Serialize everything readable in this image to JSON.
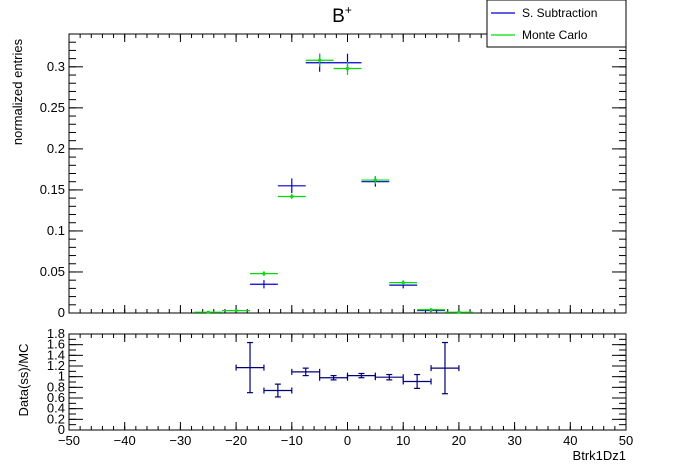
{
  "chart_data": [
    {
      "type": "scatter",
      "title": "B",
      "title_superscript": "+",
      "xlabel": "",
      "ylabel": "normalized entries",
      "xlim": [
        -50,
        50
      ],
      "ylim": [
        0,
        0.34
      ],
      "x_ticks": [
        -50,
        -40,
        -30,
        -20,
        -10,
        0,
        10,
        20,
        30,
        40,
        50
      ],
      "y_ticks": [
        0,
        0.05,
        0.1,
        0.15,
        0.2,
        0.25,
        0.3
      ],
      "y_tick_labels": [
        "0",
        "0.05",
        "0.1",
        "0.15",
        "0.2",
        "0.25",
        "0.3"
      ],
      "legend": {
        "placement": "top-right"
      },
      "series": [
        {
          "name": "S. Subtraction",
          "color": "#0000cc",
          "points": [
            {
              "x": -20,
              "xerr": 2.5,
              "y": 0.003,
              "yerr": 0.002
            },
            {
              "x": -15,
              "xerr": 2.5,
              "y": 0.035,
              "yerr": 0.005
            },
            {
              "x": -10,
              "xerr": 2.5,
              "y": 0.155,
              "yerr": 0.009
            },
            {
              "x": -5,
              "xerr": 2.5,
              "y": 0.305,
              "yerr": 0.011
            },
            {
              "x": 0,
              "xerr": 2.5,
              "y": 0.305,
              "yerr": 0.011
            },
            {
              "x": 5,
              "xerr": 2.5,
              "y": 0.16,
              "yerr": 0.006
            },
            {
              "x": 10,
              "xerr": 2.5,
              "y": 0.034,
              "yerr": 0.004
            },
            {
              "x": 15,
              "xerr": 2.5,
              "y": 0.003,
              "yerr": 0.002
            }
          ]
        },
        {
          "name": "Monte Carlo",
          "color": "#00dd00",
          "points": [
            {
              "x": -25,
              "xerr": 2.5,
              "y": 0.001,
              "yerr": 0.0005
            },
            {
              "x": -20,
              "xerr": 2.5,
              "y": 0.003,
              "yerr": 0.001
            },
            {
              "x": -15,
              "xerr": 2.5,
              "y": 0.048,
              "yerr": 0.003
            },
            {
              "x": -10,
              "xerr": 2.5,
              "y": 0.142,
              "yerr": 0.003
            },
            {
              "x": -5,
              "xerr": 2.5,
              "y": 0.308,
              "yerr": 0.008
            },
            {
              "x": 0,
              "xerr": 2.5,
              "y": 0.298,
              "yerr": 0.008
            },
            {
              "x": 5,
              "xerr": 2.5,
              "y": 0.162,
              "yerr": 0.005
            },
            {
              "x": 10,
              "xerr": 2.5,
              "y": 0.037,
              "yerr": 0.003
            },
            {
              "x": 15,
              "xerr": 2.5,
              "y": 0.004,
              "yerr": 0.001
            },
            {
              "x": 20,
              "xerr": 2.5,
              "y": 0.001,
              "yerr": 0.0005
            }
          ]
        }
      ]
    },
    {
      "type": "scatter",
      "title": "",
      "xlabel": "Btrk1Dz1",
      "ylabel": "Data(ss)/MC",
      "xlim": [
        -50,
        50
      ],
      "ylim": [
        0,
        1.8
      ],
      "x_ticks": [
        -50,
        -40,
        -30,
        -20,
        -10,
        0,
        10,
        20,
        30,
        40,
        50
      ],
      "x_tick_labels": [
        "−50",
        "−40",
        "−30",
        "−20",
        "−10",
        "0",
        "10",
        "20",
        "30",
        "40",
        "50"
      ],
      "y_ticks": [
        0,
        0.2,
        0.4,
        0.6,
        0.8,
        1,
        1.2,
        1.4,
        1.6,
        1.8
      ],
      "y_tick_labels": [
        "0",
        "0.2",
        "0.4",
        "0.6",
        "0.8",
        "1",
        "1.2",
        "1.4",
        "1.6",
        "1.8"
      ],
      "series": [
        {
          "color": "#00007a",
          "points": [
            {
              "x": -17.5,
              "xerr": 2.5,
              "y": 1.17,
              "yerr": 0.47
            },
            {
              "x": -12.5,
              "xerr": 2.5,
              "y": 0.74,
              "yerr": 0.12
            },
            {
              "x": -7.5,
              "xerr": 2.5,
              "y": 1.09,
              "yerr": 0.07
            },
            {
              "x": -2.5,
              "xerr": 2.5,
              "y": 0.98,
              "yerr": 0.04
            },
            {
              "x": 2.5,
              "xerr": 2.5,
              "y": 1.02,
              "yerr": 0.04
            },
            {
              "x": 7.5,
              "xerr": 2.5,
              "y": 0.99,
              "yerr": 0.05
            },
            {
              "x": 12.5,
              "xerr": 2.5,
              "y": 0.91,
              "yerr": 0.13
            },
            {
              "x": 17.5,
              "xerr": 2.5,
              "y": 1.16,
              "yerr": 0.48
            }
          ]
        }
      ]
    }
  ]
}
